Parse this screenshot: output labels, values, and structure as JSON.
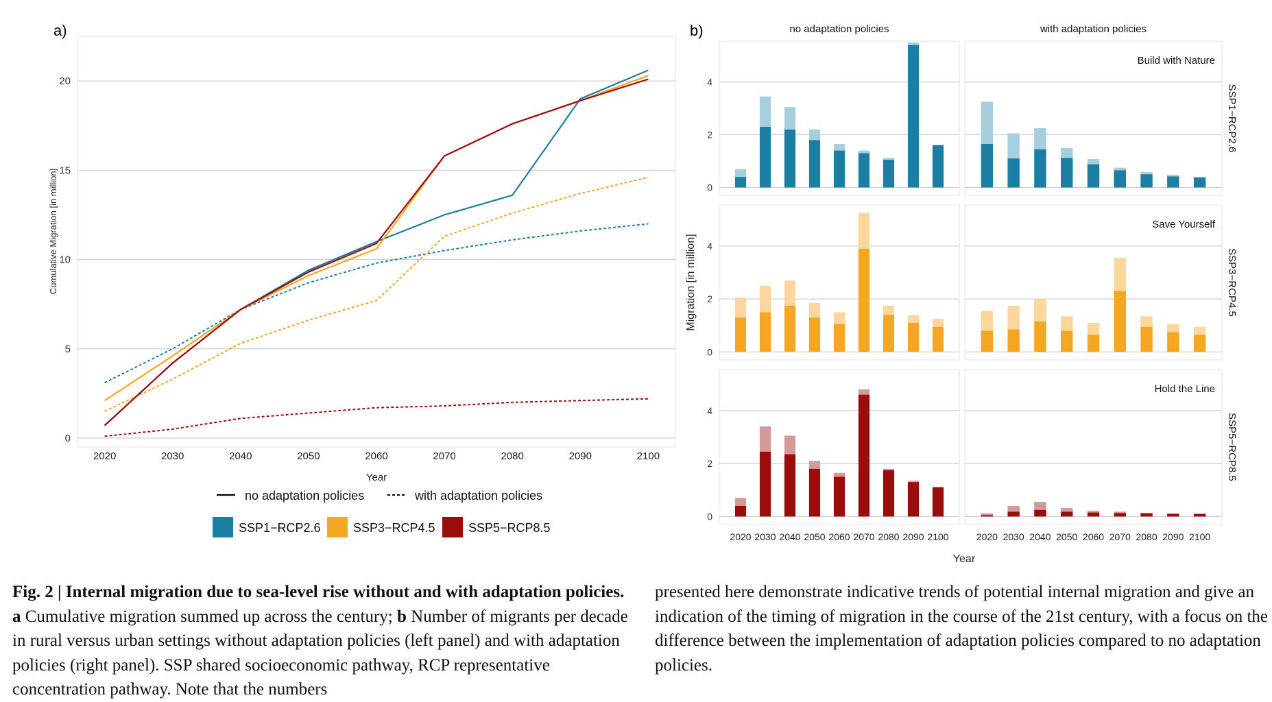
{
  "figure": {
    "panel_a_letter": "a)",
    "panel_b_letter": "b)"
  },
  "caption": {
    "fig_label": "Fig. 2 |",
    "title": "Internal migration due to sea-level rise without and with adaptation policies.",
    "a_letter": "a",
    "a_text": "Cumulative migration summed up across the century;",
    "b_letter": "b",
    "b_text": "Number of migrants per decade in rural versus urban settings without adaptation policies (left panel) and with adaptation policies (right panel). SSP shared socioeconomic pathway, RCP representative concentration pathway. Note that the numbers",
    "continued": "presented here demonstrate indicative trends of potential internal migration and give an indication of the timing of migration in the course of the 21st century, with a focus on the difference between the implementation of adaptation policies compared to no adaptation policies."
  },
  "chart_data": [
    {
      "type": "line",
      "panel": "a)",
      "xlabel": "Year",
      "ylabel": "Cumulative Migration [in million]",
      "x": [
        2020,
        2030,
        2040,
        2050,
        2060,
        2070,
        2080,
        2090,
        2100
      ],
      "xlim": [
        2016,
        2104
      ],
      "ylim": [
        -0.5,
        22.5
      ],
      "yticks": [
        0,
        5,
        10,
        15,
        20
      ],
      "grid": true,
      "legend_position": "bottom",
      "linetype_legend": [
        {
          "name": "no adaptation policies",
          "dash": false
        },
        {
          "name": "with adaptation policies",
          "dash": true
        }
      ],
      "color_legend": [
        {
          "name": "SSP1−RCP2.6",
          "color": "#1a7fa3"
        },
        {
          "name": "SSP3−RCP4.5",
          "color": "#f5a623"
        },
        {
          "name": "SSP5−RCP8.5",
          "color": "#9b0d0d"
        }
      ],
      "series": [
        {
          "scenario": "SSP1−RCP2.6",
          "policy": "with adaptation policies",
          "color": "#1a7fa3",
          "dash": true,
          "values": [
            3.1,
            5.0,
            7.2,
            8.7,
            9.8,
            10.5,
            11.1,
            11.6,
            12.0
          ]
        },
        {
          "scenario": "SSP3−RCP4.5",
          "policy": "with adaptation policies",
          "color": "#f5a623",
          "dash": true,
          "values": [
            1.5,
            3.3,
            5.3,
            6.6,
            7.7,
            11.3,
            12.6,
            13.7,
            14.6
          ]
        },
        {
          "scenario": "SSP5−RCP8.5",
          "policy": "with adaptation policies",
          "color": "#9b0d0d",
          "dash": true,
          "values": [
            0.1,
            0.5,
            1.1,
            1.4,
            1.7,
            1.8,
            2.0,
            2.1,
            2.2
          ]
        },
        {
          "scenario": "SSP1−RCP2.6",
          "policy": "no adaptation policies",
          "color": "#1a7fa3",
          "dash": false,
          "values": [
            0.7,
            4.2,
            7.2,
            9.4,
            11.0,
            12.5,
            13.6,
            19.0,
            20.6
          ]
        },
        {
          "scenario": "SSP3−RCP4.5",
          "policy": "no adaptation policies",
          "color": "#f5a623",
          "dash": false,
          "values": [
            2.1,
            4.6,
            7.2,
            9.1,
            10.6,
            15.8,
            17.6,
            18.9,
            20.3
          ]
        },
        {
          "scenario": "SSP5−RCP8.5",
          "policy": "no adaptation policies",
          "color": "#9b0d0d",
          "dash": false,
          "values": [
            0.7,
            4.2,
            7.2,
            9.3,
            10.9,
            15.8,
            17.6,
            18.9,
            20.1
          ]
        }
      ]
    },
    {
      "type": "bar",
      "panel": "b)",
      "stacked": true,
      "xlabel": "Year",
      "ylabel": "Migration [in million]",
      "categories": [
        "2020",
        "2030",
        "2040",
        "2050",
        "2060",
        "2070",
        "2080",
        "2090",
        "2100"
      ],
      "ylim": [
        -0.3,
        5.55
      ],
      "yticks": [
        0,
        2,
        4
      ],
      "grid": true,
      "column_strips": [
        "no adaptation policies",
        "with adaptation policies"
      ],
      "row_strips": [
        "SSP1−RCP2.6",
        "SSP3−RCP4.5",
        "SSP5−RCP8.5"
      ],
      "rows": [
        {
          "strip": "SSP1−RCP2.6",
          "annotation": "Build with Nature",
          "dark_color": "#1a7fa3",
          "light_color": "#a6cfdd",
          "panels": [
            {
              "column": "no adaptation policies",
              "dark": [
                0.4,
                2.3,
                2.2,
                1.8,
                1.4,
                1.3,
                1.05,
                5.4,
                1.6
              ],
              "total": [
                0.7,
                3.45,
                3.05,
                2.2,
                1.65,
                1.4,
                1.12,
                5.5,
                1.62
              ]
            },
            {
              "column": "with adaptation policies",
              "dark": [
                1.65,
                1.1,
                1.45,
                1.12,
                0.88,
                0.65,
                0.5,
                0.42,
                0.38
              ],
              "total": [
                3.25,
                2.05,
                2.25,
                1.5,
                1.08,
                0.75,
                0.58,
                0.48,
                0.4
              ]
            }
          ]
        },
        {
          "strip": "SSP3−RCP4.5",
          "annotation": "Save Yourself",
          "dark_color": "#f5a623",
          "light_color": "#fbd79d",
          "panels": [
            {
              "column": "no adaptation policies",
              "dark": [
                1.3,
                1.5,
                1.75,
                1.3,
                1.05,
                3.9,
                1.4,
                1.1,
                0.95
              ],
              "total": [
                2.05,
                2.5,
                2.7,
                1.85,
                1.5,
                5.25,
                1.75,
                1.4,
                1.25
              ]
            },
            {
              "column": "with adaptation policies",
              "dark": [
                0.8,
                0.85,
                1.15,
                0.8,
                0.65,
                2.3,
                0.95,
                0.75,
                0.65
              ],
              "total": [
                1.55,
                1.75,
                2.0,
                1.35,
                1.1,
                3.55,
                1.35,
                1.05,
                0.95
              ]
            }
          ]
        },
        {
          "strip": "SSP5−RCP8.5",
          "annotation": "Hold the Line",
          "dark_color": "#9b0d0d",
          "light_color": "#d49a9a",
          "panels": [
            {
              "column": "no adaptation policies",
              "dark": [
                0.4,
                2.45,
                2.35,
                1.8,
                1.5,
                4.6,
                1.75,
                1.3,
                1.1
              ],
              "total": [
                0.7,
                3.4,
                3.05,
                2.1,
                1.65,
                4.8,
                1.8,
                1.35,
                1.12
              ]
            },
            {
              "column": "with adaptation policies",
              "dark": [
                0.05,
                0.18,
                0.25,
                0.18,
                0.15,
                0.13,
                0.12,
                0.1,
                0.1
              ],
              "total": [
                0.12,
                0.4,
                0.55,
                0.32,
                0.22,
                0.18,
                0.14,
                0.11,
                0.1
              ]
            }
          ]
        }
      ]
    }
  ]
}
